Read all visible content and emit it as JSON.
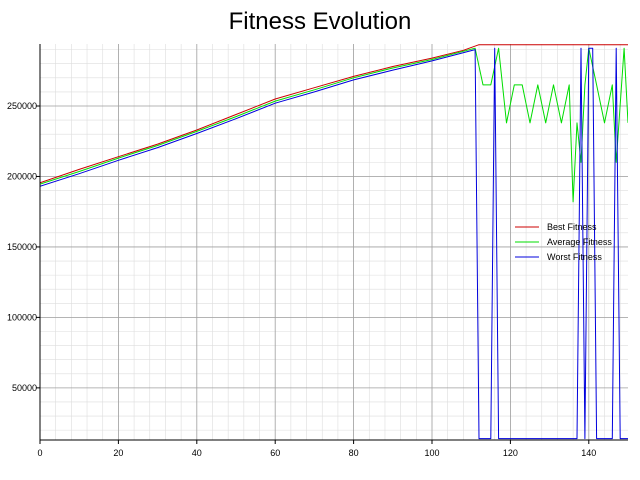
{
  "chart_data": {
    "type": "line",
    "title": "Fitness Evolution",
    "xlabel": "",
    "ylabel": "",
    "xlim": [
      0,
      150
    ],
    "ylim": [
      13000,
      294000
    ],
    "x_ticks": [
      0,
      20,
      40,
      60,
      80,
      100,
      120,
      140
    ],
    "y_ticks": [
      50000,
      100000,
      150000,
      200000,
      250000
    ],
    "y_tick_labels": [
      "50000",
      "100000",
      "150000",
      "200000",
      "250000"
    ],
    "grid": true,
    "legend_position": "right",
    "series": [
      {
        "name": "Best Fitness",
        "color": "#cc0000",
        "points": [
          [
            0,
            195500
          ],
          [
            10,
            205000
          ],
          [
            20,
            214000
          ],
          [
            30,
            223000
          ],
          [
            40,
            233000
          ],
          [
            50,
            244000
          ],
          [
            60,
            255000
          ],
          [
            70,
            263000
          ],
          [
            80,
            271000
          ],
          [
            90,
            278000
          ],
          [
            100,
            284000
          ],
          [
            108,
            289500
          ],
          [
            112,
            293500
          ],
          [
            120,
            293500
          ],
          [
            130,
            293500
          ],
          [
            140,
            293500
          ],
          [
            150,
            293500
          ]
        ]
      },
      {
        "name": "Average Fitness",
        "color": "#00dd00",
        "points": [
          [
            0,
            194500
          ],
          [
            10,
            203500
          ],
          [
            20,
            213000
          ],
          [
            30,
            222000
          ],
          [
            40,
            232000
          ],
          [
            50,
            242500
          ],
          [
            60,
            253500
          ],
          [
            70,
            261500
          ],
          [
            80,
            270000
          ],
          [
            90,
            277000
          ],
          [
            100,
            283000
          ],
          [
            111,
            291000
          ],
          [
            113,
            265000
          ],
          [
            115,
            265000
          ],
          [
            117,
            291000
          ],
          [
            119,
            238000
          ],
          [
            121,
            265000
          ],
          [
            123,
            265000
          ],
          [
            125,
            238000
          ],
          [
            127,
            265000
          ],
          [
            129,
            238000
          ],
          [
            131,
            265000
          ],
          [
            133,
            238000
          ],
          [
            135,
            265000
          ],
          [
            136,
            182000
          ],
          [
            137,
            238000
          ],
          [
            138,
            210000
          ],
          [
            139,
            265000
          ],
          [
            140,
            291000
          ],
          [
            142,
            265000
          ],
          [
            144,
            238000
          ],
          [
            146,
            265000
          ],
          [
            147,
            210000
          ],
          [
            149,
            291000
          ],
          [
            150,
            238000
          ]
        ]
      },
      {
        "name": "Worst Fitness",
        "color": "#0000dd",
        "points": [
          [
            0,
            193000
          ],
          [
            10,
            202000
          ],
          [
            20,
            211500
          ],
          [
            30,
            220500
          ],
          [
            40,
            230500
          ],
          [
            50,
            241000
          ],
          [
            60,
            252000
          ],
          [
            70,
            260000
          ],
          [
            80,
            268500
          ],
          [
            90,
            275500
          ],
          [
            100,
            282000
          ],
          [
            111,
            290000
          ],
          [
            112,
            14000
          ],
          [
            115,
            14000
          ],
          [
            116,
            291000
          ],
          [
            117,
            14000
          ],
          [
            130,
            14000
          ],
          [
            137,
            14000
          ],
          [
            138,
            291000
          ],
          [
            139,
            14000
          ],
          [
            140,
            291000
          ],
          [
            141,
            291000
          ],
          [
            142,
            14000
          ],
          [
            146,
            14000
          ],
          [
            147,
            291000
          ],
          [
            148,
            14000
          ],
          [
            150,
            14000
          ]
        ]
      }
    ]
  }
}
